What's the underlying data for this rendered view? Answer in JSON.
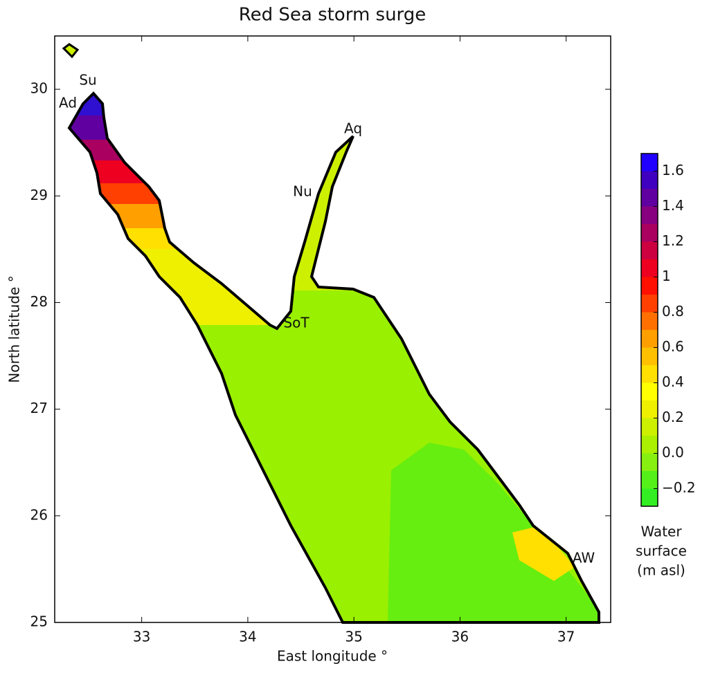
{
  "chart_data": {
    "type": "contour",
    "title": "Red Sea storm surge",
    "xlabel": "East longitude °",
    "ylabel": "North latitude °",
    "xlim": [
      32.18,
      37.42
    ],
    "xticks": [
      33,
      34,
      35,
      36,
      37
    ],
    "ylim": [
      25,
      30.5
    ],
    "yticks": [
      25,
      26,
      27,
      28,
      29,
      30
    ],
    "places": [
      "Su",
      "Ad",
      "Aq",
      "Nu",
      "SoT",
      "AW"
    ],
    "colorbar": {
      "lim": [
        -0.3,
        1.7
      ],
      "ticks": [
        {
          "value": -0.2,
          "label": "−0.2"
        },
        {
          "value": 0.0,
          "label": "0.0"
        },
        0.2,
        0.4,
        0.6,
        0.8,
        1.0,
        1.2,
        1.4,
        1.6
      ],
      "levels": [
        -0.3,
        -0.2,
        -0.1,
        0.0,
        0.1,
        0.2,
        0.3,
        0.4,
        0.5,
        0.6,
        0.7,
        0.8,
        0.9,
        1.0,
        1.1,
        1.2,
        1.3,
        1.4,
        1.5,
        1.6,
        1.7
      ],
      "colors": [
        "#33ee22",
        "#55f01a",
        "#88f010",
        "#aaf000",
        "#ccf000",
        "#eef000",
        "#ffff00",
        "#ffe000",
        "#ffc000",
        "#ffa000",
        "#ff7000",
        "#ff4000",
        "#ff1000",
        "#ee0020",
        "#cc0040",
        "#aa0060",
        "#880080",
        "#6000a0",
        "#4000c0",
        "#2000ff"
      ],
      "label": [
        "Water",
        "surface",
        "(m asl)"
      ]
    }
  }
}
